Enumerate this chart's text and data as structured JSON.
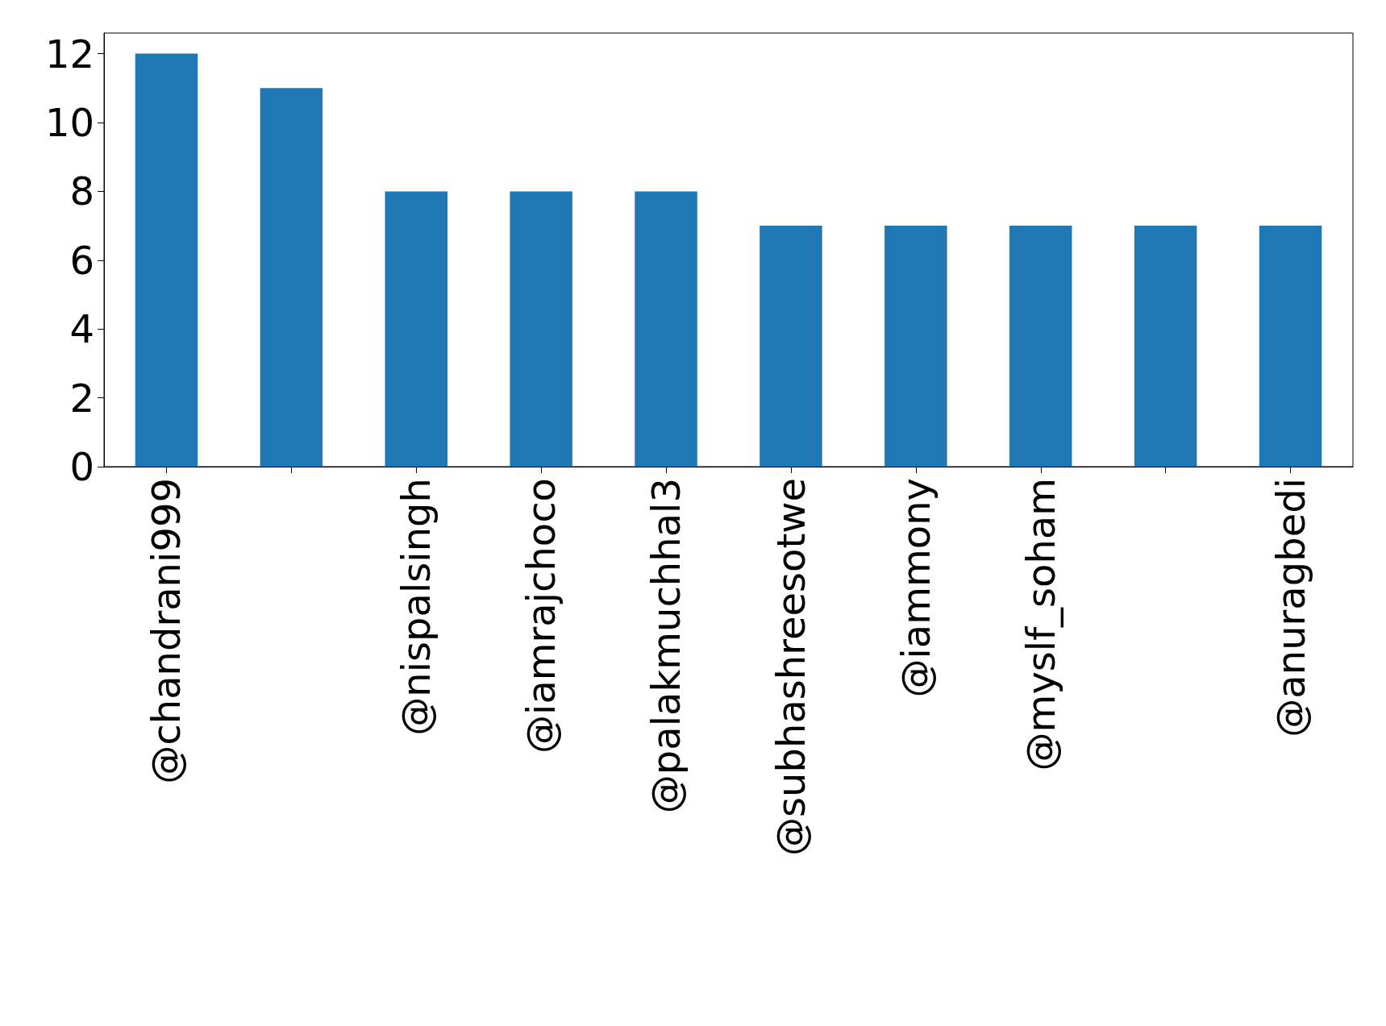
{
  "chart_data": {
    "type": "bar",
    "categories": [
      "@chandrani999",
      null,
      "@nispalsingh",
      "@iamrajchoco",
      "@palakmuchhal3",
      "@subhashreesotwe",
      "@iammony",
      "@myslf_soham",
      null,
      "@anuragbedi"
    ],
    "values": [
      12,
      11,
      8,
      8,
      8,
      7,
      7,
      7,
      7,
      7
    ],
    "color": "#1f77b4",
    "ylim": [
      0,
      12.6
    ],
    "yticks": [
      0,
      2,
      4,
      6,
      8,
      10,
      12
    ],
    "grid": false
  }
}
